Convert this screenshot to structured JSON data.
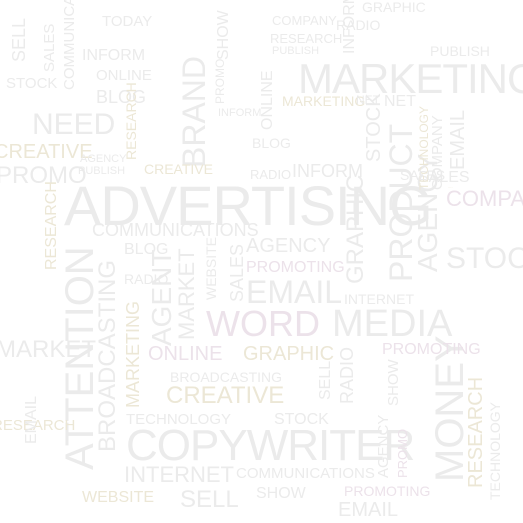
{
  "words": {
    "advertising": "ADVERTISING",
    "marketing": "MARKETING",
    "copywriter": "COPYWRITER",
    "attention": "ATTENTION",
    "media": "MEDIA",
    "word": "WORD",
    "money": "MONEY",
    "product": "PRODUCT",
    "brand": "BRAND",
    "email": "EMAIL",
    "need": "NEED",
    "creative": "CREATIVE",
    "communications": "COMMUNICATIONS",
    "agency": "AGENCY",
    "promoting": "PROMOTING",
    "graphic": "GRAPHIC",
    "online": "ONLINE",
    "internet": "INTERNET",
    "broadcasting": "BROADCASTING",
    "research": "RESEARCH",
    "stock": "STOCK",
    "market": "MARKET",
    "agent": "AGENT",
    "inform": "INFORM",
    "blog": "BLOG",
    "technology": "TECHNOLOGY",
    "sales": "SALES",
    "website": "WEBSITE",
    "sell": "SELL",
    "show": "SHOW",
    "company": "COMPANY",
    "radio": "RADIO",
    "promo": "PROMO",
    "publish": "PUBLISH",
    "net": "NET",
    "today": "TODAY"
  }
}
